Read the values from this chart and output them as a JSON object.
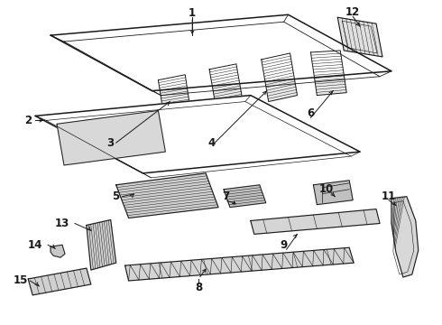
{
  "bg_color": "#ffffff",
  "line_color": "#1a1a1a",
  "lw_main": 0.9,
  "lw_thin": 0.5,
  "lw_hatch": 0.4,
  "label_fontsize": 8.5,
  "label_fontweight": "bold"
}
